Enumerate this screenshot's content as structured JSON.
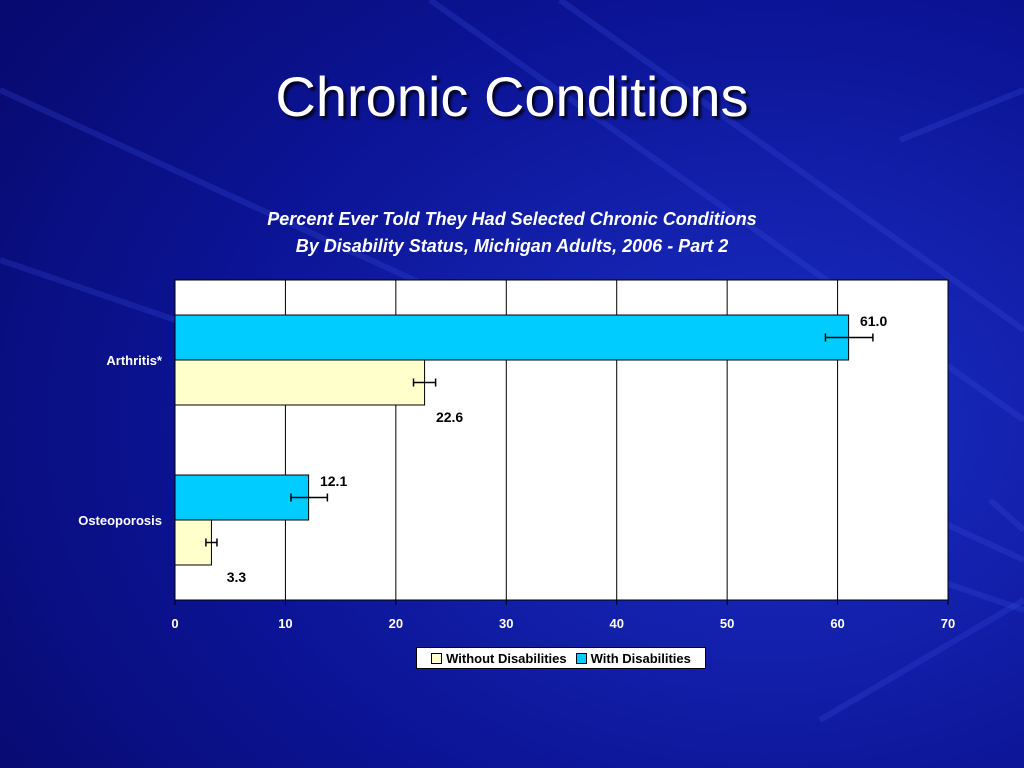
{
  "slide": {
    "title": "Chronic Conditions",
    "background_color": "#0a0f8a"
  },
  "chart_data": {
    "type": "bar",
    "orientation": "horizontal",
    "title_line1": "Percent Ever Told They Had Selected Chronic Conditions",
    "title_line2": "By Disability Status, Michigan Adults, 2006 - Part 2",
    "categories": [
      "Arthritis*",
      "Osteoporosis"
    ],
    "series": [
      {
        "name": "With Disabilities",
        "color": "#00ccff",
        "values": [
          61.0,
          12.1
        ],
        "labels": [
          "61.0",
          "12.1"
        ],
        "error_low": [
          58.9,
          10.5
        ],
        "error_high": [
          63.2,
          13.8
        ]
      },
      {
        "name": "Without Disabilities",
        "color": "#ffffcc",
        "values": [
          22.6,
          3.3
        ],
        "labels": [
          "22.6",
          "3.3"
        ],
        "error_low": [
          21.6,
          2.8
        ],
        "error_high": [
          23.6,
          3.8
        ]
      }
    ],
    "xlim": [
      0,
      70
    ],
    "xticks": [
      "0",
      "10",
      "20",
      "30",
      "40",
      "50",
      "60",
      "70"
    ],
    "grid": true,
    "legend_position": "bottom"
  },
  "legend": {
    "items": [
      {
        "label": "Without Disabilities",
        "color": "#ffffcc"
      },
      {
        "label": "With Disabilities",
        "color": "#00ccff"
      }
    ]
  }
}
